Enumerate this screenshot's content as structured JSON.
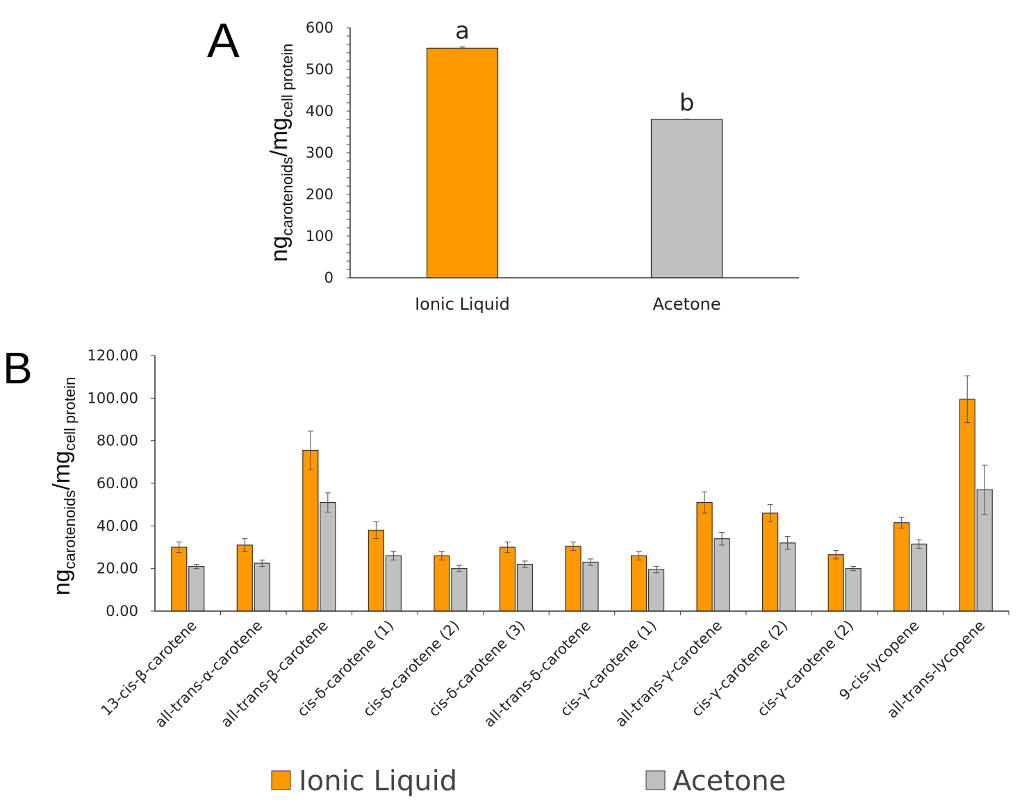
{
  "colors": {
    "ionic": "#ff9900",
    "acetone": "#c0c0c0",
    "bar_edge": "#333333",
    "axis": "#333333"
  },
  "ylabel": {
    "main": "ng",
    "sub1": "carotenoids",
    "sep": "/mg",
    "sub2": "cell protein"
  },
  "legend": [
    {
      "label": "Ionic Liquid",
      "color": "#ff9900"
    },
    {
      "label": "Acetone",
      "color": "#c0c0c0"
    }
  ],
  "chart_data": [
    {
      "panel": "A",
      "type": "bar",
      "categories": [
        "Ionic Liquid",
        "Acetone"
      ],
      "values": [
        551,
        380
      ],
      "errors": [
        3,
        1
      ],
      "annotations": [
        "a",
        "b"
      ],
      "ylim": [
        0,
        600
      ],
      "yticks": [
        "0",
        "100",
        "200",
        "300",
        "400",
        "500",
        "600"
      ],
      "ytick_values": [
        0,
        100,
        200,
        300,
        400,
        500,
        600
      ],
      "ylabel": "ngcarotenoids/mgcell protein",
      "grid": false
    },
    {
      "panel": "B",
      "type": "bar",
      "categories": [
        "13-cis-β-carotene",
        "all-trans-α-carotene",
        "all-trans-β-carotene",
        "cis-δ-carotene (1)",
        "cis-δ-carotene (2)",
        "cis-δ-carotene (3)",
        "all-trans-δ-carotene",
        "cis-γ-carotene (1)",
        "all-trans-γ-carotene",
        "cis-γ-carotene (2)",
        "cis-γ-carotene (2)",
        "9-cis-lycopene",
        "all-trans-lycopene"
      ],
      "series": [
        {
          "name": "Ionic Liquid",
          "values": [
            30,
            31,
            75.5,
            38,
            26,
            30,
            30.5,
            26,
            51,
            46,
            26.5,
            41.5,
            99.5
          ],
          "errors": [
            2.5,
            3,
            9,
            4,
            2,
            2.5,
            2,
            2,
            5,
            4,
            2,
            2.5,
            11
          ]
        },
        {
          "name": "Acetone",
          "values": [
            21,
            22.5,
            51,
            26,
            20,
            22,
            23,
            19.5,
            34,
            32,
            20,
            31.5,
            57
          ],
          "errors": [
            1,
            1.5,
            4.5,
            2,
            1.5,
            1.5,
            1.5,
            1.5,
            3,
            3,
            1,
            2,
            11.5
          ]
        }
      ],
      "ylim": [
        0,
        120
      ],
      "yticks": [
        "0.00",
        "20.00",
        "40.00",
        "60.00",
        "80.00",
        "100.00",
        "120.00"
      ],
      "ytick_values": [
        0,
        20,
        40,
        60,
        80,
        100,
        120
      ],
      "ylabel": "ngcarotenoids/mgcell protein",
      "legend_position": "bottom",
      "grid": false
    }
  ]
}
